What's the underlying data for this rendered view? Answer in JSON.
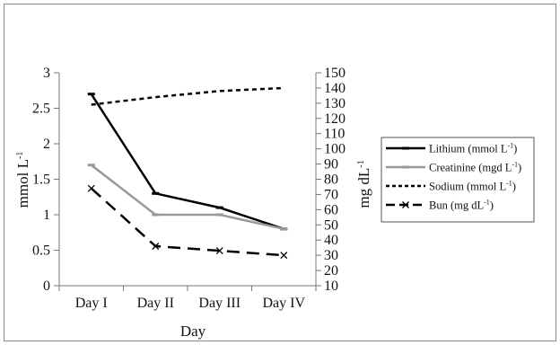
{
  "chart_data": {
    "type": "line",
    "xlabel": "Day",
    "ylabel_left": "mmol L",
    "ylabel_left_sup": "-1",
    "ylabel_right": "mg dL",
    "ylabel_right_sup": "-1",
    "categories": [
      "Day I",
      "Day II",
      "Day III",
      "Day IV"
    ],
    "ylim_left": [
      0,
      3
    ],
    "yticks_left": [
      "0",
      "0.5",
      "1",
      "1.5",
      "2",
      "2.5",
      "3"
    ],
    "ylim_right": [
      10,
      150
    ],
    "yticks_right": [
      "10",
      "20",
      "30",
      "40",
      "50",
      "60",
      "70",
      "80",
      "90",
      "100",
      "110",
      "120",
      "130",
      "140",
      "150"
    ],
    "grid": false,
    "legend_position": "right",
    "series": [
      {
        "name": "Lithium (mmol L",
        "sup": "-1",
        "suffix": ")",
        "axis": "left",
        "values": [
          2.7,
          1.3,
          1.1,
          0.8
        ],
        "color": "#000000",
        "style": "solid",
        "marker": "dash"
      },
      {
        "name": "Creatinine (mgd L",
        "sup": "-1",
        "suffix": ")",
        "axis": "left",
        "values": [
          1.7,
          1.0,
          1.0,
          0.8
        ],
        "color": "#999999",
        "style": "solid",
        "marker": "dash"
      },
      {
        "name": "Sodium (mmol L",
        "sup": "-1",
        "suffix": ")",
        "axis": "right",
        "values": [
          129,
          134,
          138,
          140
        ],
        "color": "#000000",
        "style": "dotted",
        "marker": "none"
      },
      {
        "name": "Bun (mg dL",
        "sup": "-1",
        "suffix": ")",
        "axis": "right",
        "values": [
          74,
          36,
          33,
          30
        ],
        "color": "#000000",
        "style": "dashed",
        "marker": "x"
      }
    ]
  }
}
